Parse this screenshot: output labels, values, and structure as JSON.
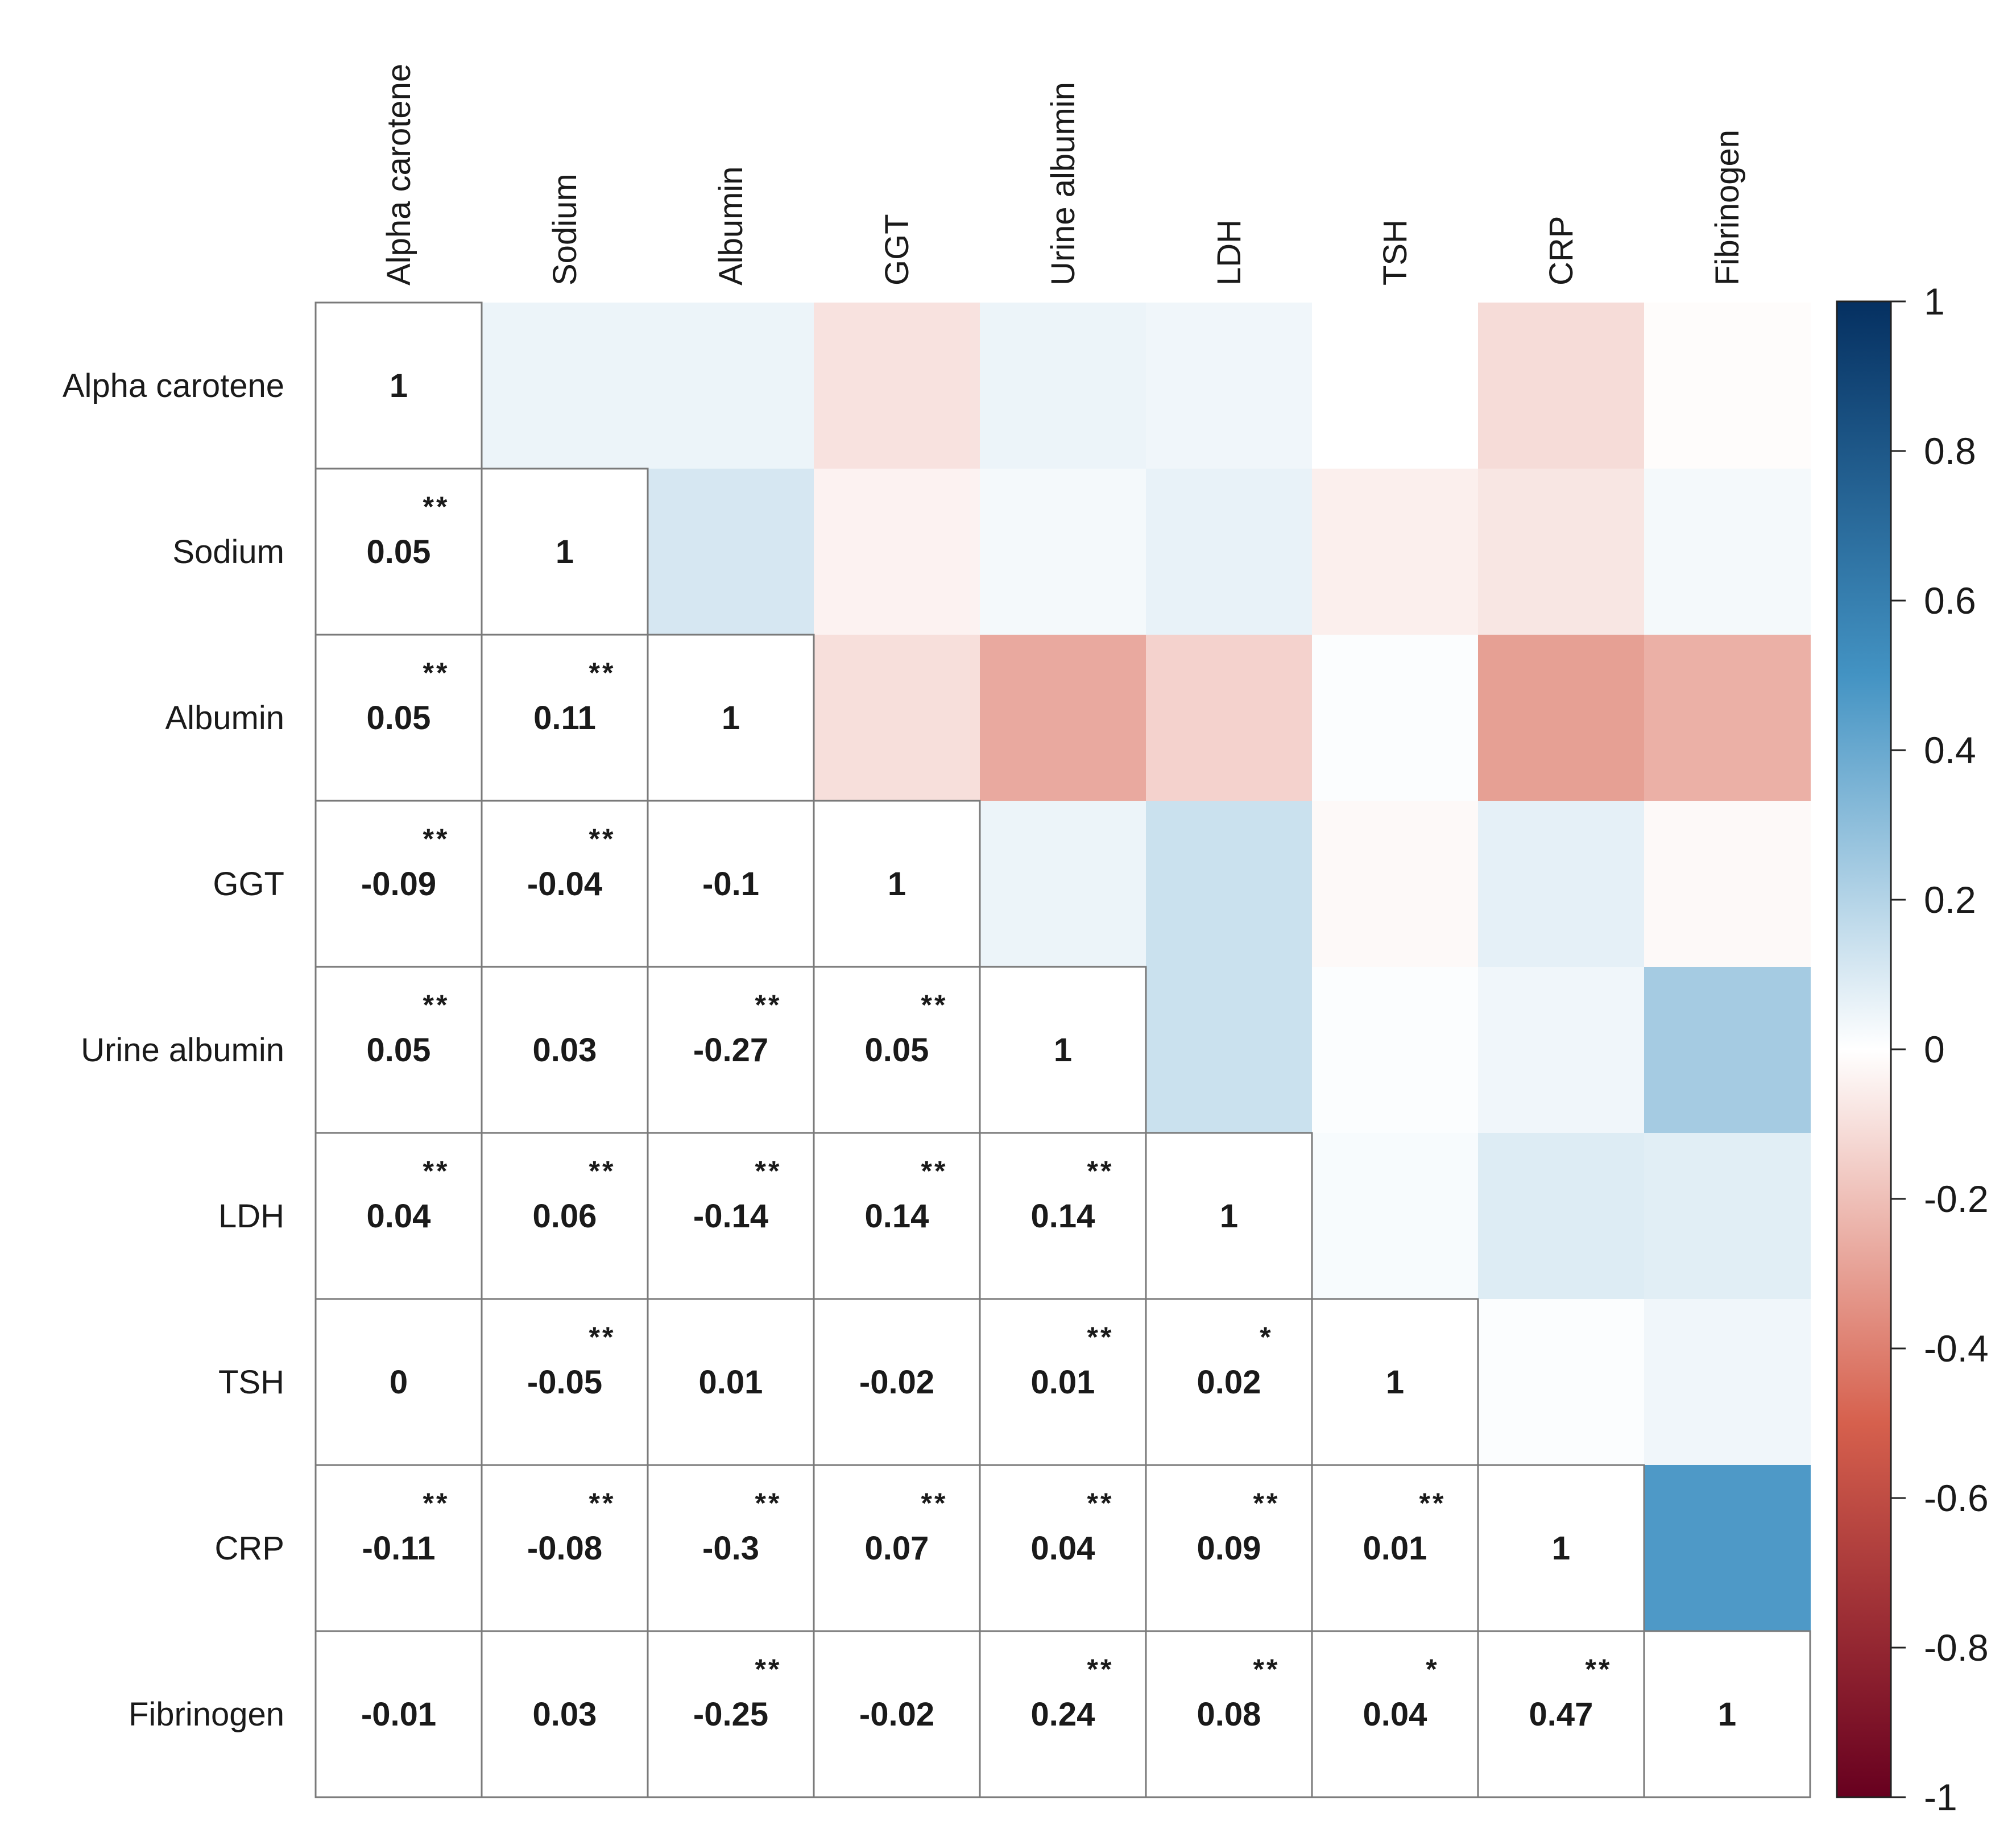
{
  "chart_data": {
    "type": "heatmap",
    "title": "",
    "variables": [
      "Alpha carotene",
      "Sodium",
      "Albumin",
      "GGT",
      "Urine albumin",
      "LDH",
      "TSH",
      "CRP",
      "Fibrinogen"
    ],
    "lower_values": [
      [
        "1",
        "",
        "",
        "",
        "",
        "",
        "",
        "",
        ""
      ],
      [
        "0.05",
        "1",
        "",
        "",
        "",
        "",
        "",
        "",
        ""
      ],
      [
        "0.05",
        "0.11",
        "1",
        "",
        "",
        "",
        "",
        "",
        ""
      ],
      [
        "-0.09",
        "-0.04",
        "-0.1",
        "1",
        "",
        "",
        "",
        "",
        ""
      ],
      [
        "0.05",
        "0.03",
        "-0.27",
        "0.05",
        "1",
        "",
        "",
        "",
        ""
      ],
      [
        "0.04",
        "0.06",
        "-0.14",
        "0.14",
        "0.14",
        "1",
        "",
        "",
        ""
      ],
      [
        "0",
        "-0.05",
        "0.01",
        "-0.02",
        "0.01",
        "0.02",
        "1",
        "",
        ""
      ],
      [
        "-0.11",
        "-0.08",
        "-0.3",
        "0.07",
        "0.04",
        "0.09",
        "0.01",
        "1",
        ""
      ],
      [
        "-0.01",
        "0.03",
        "-0.25",
        "-0.02",
        "0.24",
        "0.08",
        "0.04",
        "0.47",
        "1"
      ]
    ],
    "significance": [
      [
        "",
        "",
        "",
        "",
        "",
        "",
        "",
        "",
        ""
      ],
      [
        "**",
        "",
        "",
        "",
        "",
        "",
        "",
        "",
        ""
      ],
      [
        "**",
        "**",
        "",
        "",
        "",
        "",
        "",
        "",
        ""
      ],
      [
        "**",
        "**",
        "",
        "",
        "",
        "",
        "",
        "",
        ""
      ],
      [
        "**",
        "",
        "**",
        "**",
        "",
        "",
        "",
        "",
        ""
      ],
      [
        "**",
        "**",
        "**",
        "**",
        "**",
        "",
        "",
        "",
        ""
      ],
      [
        "",
        "**",
        "",
        "",
        "**",
        "*",
        "",
        "",
        ""
      ],
      [
        "**",
        "**",
        "**",
        "**",
        "**",
        "**",
        "**",
        "",
        ""
      ],
      [
        "",
        "",
        "**",
        "",
        "**",
        "**",
        "*",
        "**",
        ""
      ]
    ],
    "colorbar": {
      "range": [
        -1,
        1
      ],
      "ticks": [
        "1",
        "0.8",
        "0.6",
        "0.4",
        "0.2",
        "0",
        "-0.2",
        "-0.4",
        "-0.6",
        "-0.8",
        "-1"
      ],
      "colors": {
        "negative_end": "#67001f",
        "negative_mid": "#d6604d",
        "neutral": "#ffffff",
        "positive_mid": "#4393c3",
        "positive_end": "#053061"
      }
    },
    "legend_position": "right"
  }
}
